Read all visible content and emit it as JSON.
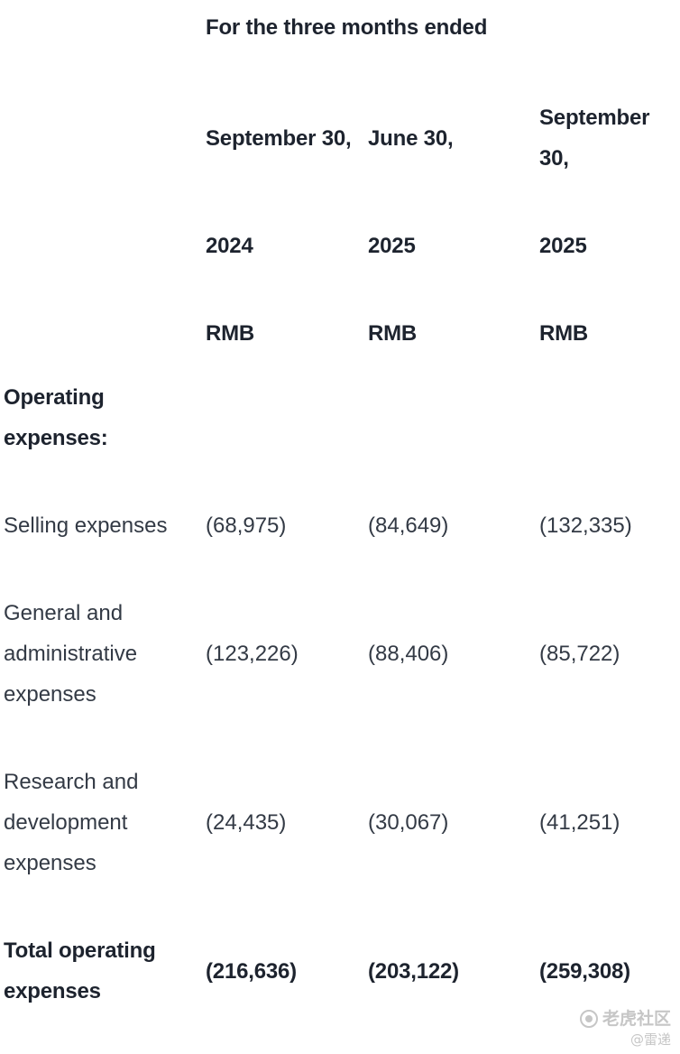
{
  "table": {
    "title": "For the three months ended",
    "columns": [
      {
        "period": "September 30,",
        "year": "2024",
        "currency": "RMB"
      },
      {
        "period": "June 30,",
        "year": "2025",
        "currency": "RMB"
      },
      {
        "period": "September 30,",
        "year": "2025",
        "currency": "RMB"
      }
    ],
    "rows": [
      {
        "label": "Operating expenses:",
        "values": [
          "",
          "",
          ""
        ]
      },
      {
        "label": "Selling expenses",
        "values": [
          "(68,975)",
          "(84,649)",
          "(132,335)"
        ]
      },
      {
        "label": "General and administrative expenses",
        "values": [
          "(123,226)",
          "(88,406)",
          "(85,722)"
        ]
      },
      {
        "label": "Research and development expenses",
        "values": [
          "(24,435)",
          "(30,067)",
          "(41,251)"
        ]
      },
      {
        "label": "Total operating expenses",
        "values": [
          "(216,636)",
          "(203,122)",
          "(259,308)"
        ]
      }
    ]
  },
  "watermark": {
    "brand": "老虎社区",
    "handle": "@雷递"
  }
}
